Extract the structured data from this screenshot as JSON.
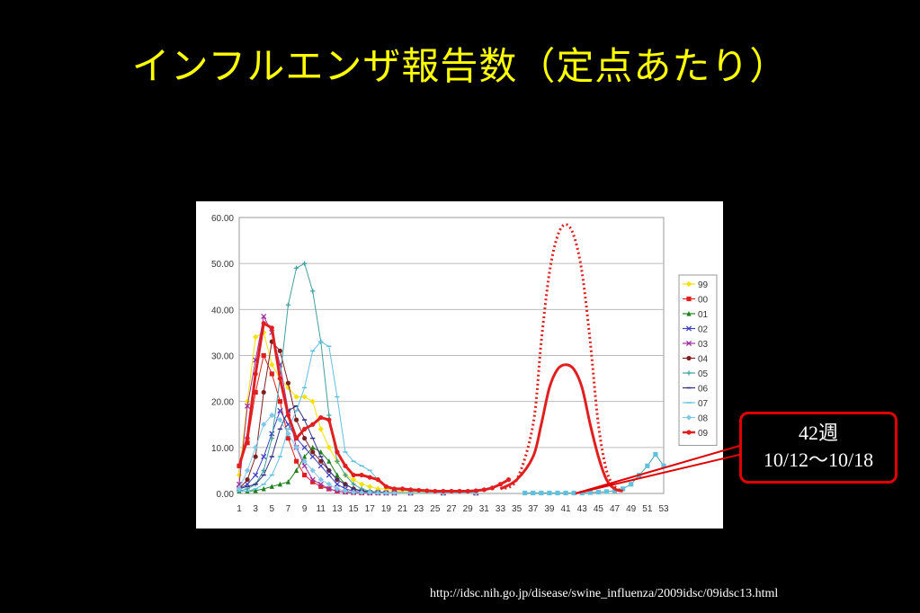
{
  "title": "インフルエンザ報告数（定点あたり）",
  "callout": {
    "line1": "42週",
    "line2": "10/12〜10/18"
  },
  "source_url": "http://idsc.nih.go.jp/disease/swine_influenza/2009idsc/09idsc13.html",
  "chart_data": {
    "type": "line",
    "y_ticks": [
      "60.00",
      "50.00",
      "40.00",
      "30.00",
      "20.00",
      "10.00",
      "0.00"
    ],
    "ylim": [
      0,
      60
    ],
    "x_ticks": [
      "1",
      "3",
      "5",
      "7",
      "9",
      "11",
      "13",
      "15",
      "17",
      "19",
      "21",
      "23",
      "25",
      "27",
      "29",
      "31",
      "33",
      "35",
      "37",
      "39",
      "41",
      "43",
      "45",
      "47",
      "49",
      "51",
      "53"
    ],
    "xlim": [
      1,
      53
    ],
    "grid": true,
    "legend_position": "right",
    "series": [
      {
        "name": "99",
        "color": "#f5e000",
        "marker": "diamond",
        "x": [
          1,
          2,
          3,
          4,
          5,
          6,
          7,
          8,
          9,
          10,
          11,
          12,
          13,
          14,
          15,
          16,
          17,
          18,
          19,
          20,
          22,
          26,
          30
        ],
        "y": [
          4,
          20,
          34,
          35,
          28,
          25,
          23,
          21,
          21,
          20,
          14,
          10,
          7,
          4,
          3,
          2,
          1.5,
          1,
          1,
          0.5,
          0.3,
          0.2,
          0.1
        ]
      },
      {
        "name": "00",
        "color": "#e02020",
        "marker": "square",
        "x": [
          1,
          2,
          3,
          4,
          5,
          6,
          7,
          8,
          9,
          10,
          11,
          12,
          13,
          14,
          15,
          16,
          17,
          18,
          19,
          20,
          22,
          26,
          30
        ],
        "y": [
          6,
          11,
          22,
          30,
          26,
          20,
          12,
          7,
          4,
          2.5,
          1.5,
          1,
          0.5,
          0.3,
          0.2,
          0.1,
          0.1,
          0.1,
          0.1,
          0.1,
          0.1,
          0.1,
          0.1
        ]
      },
      {
        "name": "01",
        "color": "#208020",
        "marker": "triangle",
        "x": [
          1,
          2,
          3,
          4,
          5,
          6,
          7,
          8,
          9,
          10,
          11,
          12,
          13,
          14,
          15,
          16,
          17,
          18,
          19,
          20,
          22,
          26,
          30
        ],
        "y": [
          0.5,
          0.5,
          0.6,
          1,
          1.5,
          2,
          2.5,
          5,
          8,
          10,
          9,
          7,
          4,
          2,
          1,
          0.6,
          0.4,
          0.3,
          0.2,
          0.2,
          0.1,
          0.1,
          0.1
        ]
      },
      {
        "name": "02",
        "color": "#4040c0",
        "marker": "x",
        "x": [
          1,
          2,
          3,
          4,
          5,
          6,
          7,
          8,
          9,
          10,
          11,
          12,
          13,
          14,
          15,
          16,
          17,
          18,
          19,
          20,
          22,
          26,
          30
        ],
        "y": [
          1,
          2,
          4,
          8,
          13,
          18,
          15,
          12,
          10,
          8,
          6,
          4,
          2,
          1,
          0.5,
          0.3,
          0.2,
          0.2,
          0.1,
          0.1,
          0.1,
          0.1,
          0.1
        ]
      },
      {
        "name": "03",
        "color": "#a030a0",
        "marker": "x",
        "x": [
          1,
          2,
          3,
          4,
          5,
          6,
          7,
          8,
          9,
          10,
          11,
          12,
          13,
          14,
          15,
          16,
          17,
          18,
          19,
          20,
          22,
          26,
          30
        ],
        "y": [
          2,
          19,
          29,
          38.5,
          35,
          28,
          18,
          10,
          6,
          3,
          2,
          1,
          0.5,
          0.3,
          0.2,
          0.2,
          0.1,
          0.1,
          0.1,
          0.1,
          0.1,
          0.1,
          0.1
        ]
      },
      {
        "name": "04",
        "color": "#802020",
        "marker": "circle",
        "x": [
          1,
          2,
          3,
          4,
          5,
          6,
          7,
          8,
          9,
          10,
          11,
          12,
          13,
          14,
          15,
          16,
          17,
          18,
          19,
          20,
          22,
          26,
          30
        ],
        "y": [
          1,
          3,
          8,
          22,
          33,
          31,
          24,
          16,
          12,
          9,
          7,
          5,
          3,
          2,
          1,
          0.5,
          0.3,
          0.2,
          0.2,
          0.1,
          0.1,
          0.1,
          0.1
        ]
      },
      {
        "name": "05",
        "color": "#40a0a0",
        "marker": "plus",
        "x": [
          1,
          2,
          3,
          4,
          5,
          6,
          7,
          8,
          9,
          10,
          11,
          12,
          13,
          14,
          15,
          16,
          17,
          18,
          19,
          20,
          22,
          26,
          30
        ],
        "y": [
          0.5,
          1,
          2,
          5,
          12,
          25,
          41,
          49,
          50,
          44,
          33,
          17,
          7,
          4,
          2,
          1,
          0.5,
          0.3,
          0.2,
          0.2,
          0.1,
          0.1,
          0.1
        ]
      },
      {
        "name": "06",
        "color": "#303080",
        "marker": "dash",
        "x": [
          1,
          2,
          3,
          4,
          5,
          6,
          7,
          8,
          9,
          10,
          11,
          12,
          13,
          14,
          15,
          16,
          17,
          18,
          19,
          20,
          22,
          26,
          30
        ],
        "y": [
          1,
          1.5,
          2,
          4,
          8,
          14,
          18,
          19,
          16,
          12,
          8,
          5,
          3,
          2,
          1,
          0.5,
          0.3,
          0.2,
          0.2,
          0.1,
          0.1,
          0.1,
          0.1
        ]
      },
      {
        "name": "07",
        "color": "#60c0e0",
        "marker": "dash",
        "x": [
          1,
          2,
          3,
          4,
          5,
          6,
          7,
          8,
          9,
          10,
          11,
          12,
          13,
          14,
          15,
          16,
          17,
          18,
          19,
          20,
          22,
          26,
          30
        ],
        "y": [
          0.5,
          0.5,
          1,
          2,
          4,
          8,
          14,
          18,
          23,
          31,
          33,
          32,
          21,
          9,
          7,
          6,
          5,
          3,
          1.5,
          1,
          0.5,
          0.3,
          0.2
        ]
      },
      {
        "name": "08",
        "color": "#80c8e8",
        "marker": "diamond",
        "x": [
          1,
          2,
          3,
          4,
          5,
          6,
          7,
          8,
          9,
          10,
          11,
          12,
          13,
          14,
          15,
          16,
          17,
          18,
          19,
          20,
          22,
          26,
          30
        ],
        "y": [
          1,
          5,
          10,
          15,
          17,
          16,
          13,
          10,
          7,
          5,
          3,
          2,
          1,
          0.5,
          0.3,
          0.2,
          0.2,
          0.1,
          0.1,
          0.1,
          0.1,
          0.1,
          0.1
        ]
      },
      {
        "name": "09",
        "color": "#e02020",
        "marker": "circle",
        "bold": true,
        "x": [
          1,
          2,
          3,
          4,
          5,
          6,
          7,
          8,
          9,
          10,
          11,
          12,
          13,
          14,
          15,
          16,
          17,
          18,
          19,
          20,
          21,
          22,
          23,
          24,
          25,
          26,
          27,
          28,
          29,
          30,
          31,
          32,
          33,
          34
        ],
        "y": [
          6,
          12,
          26,
          37,
          36,
          25,
          17,
          12,
          14,
          15,
          16.5,
          16,
          9,
          6,
          4,
          4,
          3.5,
          3,
          1.5,
          1,
          1,
          0.8,
          0.7,
          0.6,
          0.5,
          0.5,
          0.5,
          0.5,
          0.5,
          0.6,
          0.8,
          1.2,
          2,
          3
        ]
      }
    ],
    "offseason_baseline": {
      "x": [
        36,
        37,
        38,
        39,
        40,
        41,
        42,
        43,
        44,
        45,
        46,
        47,
        48,
        49,
        50,
        51,
        52,
        53
      ],
      "y": [
        0.1,
        0.1,
        0.1,
        0.1,
        0.1,
        0.1,
        0.1,
        0.1,
        0.2,
        0.3,
        0.4,
        0.6,
        1,
        2,
        4,
        6,
        8.5,
        6
      ]
    },
    "annotations": {
      "dotted_projection": {
        "x": [
          33,
          35,
          37,
          38,
          39,
          40,
          41,
          42,
          43,
          44,
          45,
          46,
          47,
          48
        ],
        "y": [
          1,
          3,
          15,
          33,
          48,
          56,
          58.5,
          56,
          48,
          33,
          15,
          5,
          1.5,
          0.5
        ]
      },
      "solid_projection": {
        "x": [
          33,
          35,
          37,
          38,
          39,
          40,
          41,
          42,
          43,
          44,
          45,
          46,
          47,
          48
        ],
        "y": [
          1,
          3,
          8,
          15,
          23,
          27,
          28,
          27,
          23,
          15,
          8,
          3,
          1,
          0.5
        ]
      }
    }
  }
}
